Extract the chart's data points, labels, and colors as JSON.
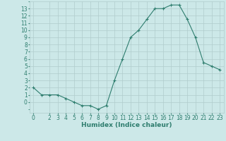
{
  "x": [
    0,
    1,
    2,
    3,
    4,
    5,
    6,
    7,
    8,
    9,
    10,
    11,
    12,
    13,
    14,
    15,
    16,
    17,
    18,
    19,
    20,
    21,
    22,
    23
  ],
  "y": [
    2,
    1,
    1,
    1,
    0.5,
    0,
    -0.5,
    -0.5,
    -1,
    -0.5,
    3,
    6,
    9,
    10,
    11.5,
    13,
    13,
    13.5,
    13.5,
    11.5,
    9,
    5.5,
    5,
    4.5
  ],
  "line_color": "#2e7d6e",
  "marker": "+",
  "marker_size": 3,
  "bg_color": "#cce8e8",
  "grid_color": "#b0cccc",
  "tick_color": "#2e7d6e",
  "xlabel": "Humidex (Indice chaleur)",
  "xlim": [
    -0.5,
    23.5
  ],
  "ylim": [
    -1.5,
    14.0
  ],
  "yticks": [
    0,
    1,
    2,
    3,
    4,
    5,
    6,
    7,
    8,
    9,
    10,
    11,
    12,
    13
  ],
  "xticks": [
    0,
    2,
    3,
    4,
    5,
    6,
    7,
    8,
    9,
    10,
    11,
    12,
    13,
    14,
    15,
    16,
    17,
    18,
    19,
    20,
    21,
    22,
    23
  ],
  "xlabel_fontsize": 6.5,
  "tick_fontsize": 5.5
}
